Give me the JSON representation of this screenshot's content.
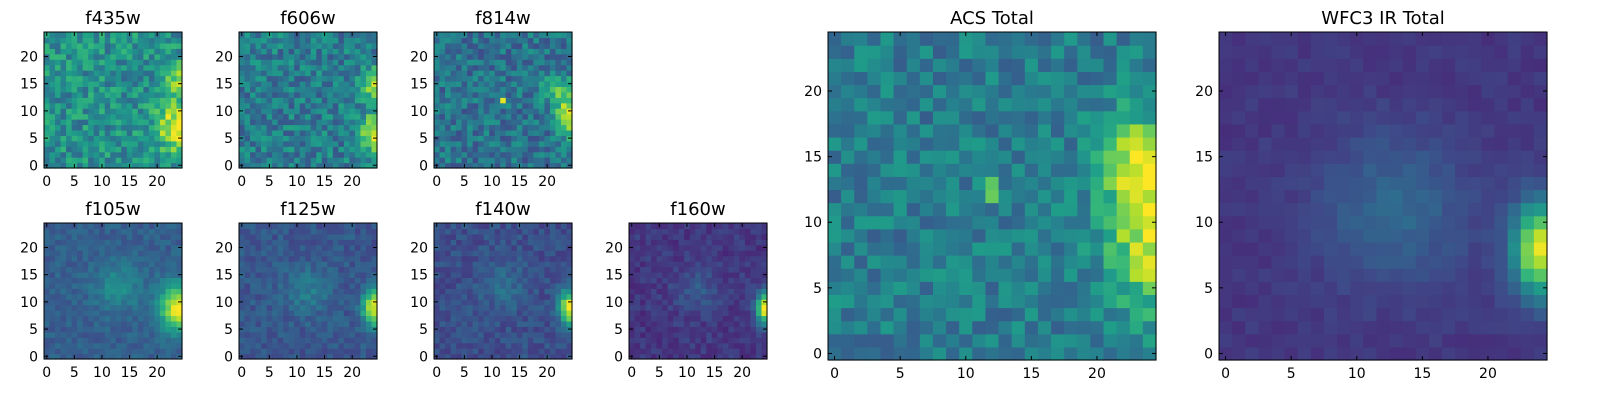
{
  "chart_data": [
    {
      "type": "heatmap",
      "title": "f435w",
      "xlim": [
        0,
        24
      ],
      "ylim": [
        0,
        24
      ],
      "xticks": [
        "0",
        "5",
        "10",
        "15",
        "20"
      ],
      "yticks": [
        "0",
        "5",
        "10",
        "15",
        "20"
      ],
      "colormap": "viridis",
      "field": {
        "base": 0.5,
        "noise": 0.17,
        "blobs": [
          {
            "x": 24,
            "y": 7,
            "sx": 2.5,
            "sy": 3,
            "a": 0.55
          },
          {
            "x": 24,
            "y": 16,
            "sx": 2,
            "sy": 2,
            "a": 0.3
          }
        ],
        "seed": 11
      }
    },
    {
      "type": "heatmap",
      "title": "f606w",
      "xlim": [
        0,
        24
      ],
      "ylim": [
        0,
        24
      ],
      "xticks": [
        "0",
        "5",
        "10",
        "15",
        "20"
      ],
      "yticks": [
        "0",
        "5",
        "10",
        "15",
        "20"
      ],
      "colormap": "viridis",
      "field": {
        "base": 0.42,
        "noise": 0.16,
        "blobs": [
          {
            "x": 24,
            "y": 6,
            "sx": 1.8,
            "sy": 2.5,
            "a": 0.55
          },
          {
            "x": 24,
            "y": 15,
            "sx": 1.8,
            "sy": 1.8,
            "a": 0.5
          }
        ],
        "seed": 23
      }
    },
    {
      "type": "heatmap",
      "title": "f814w",
      "xlim": [
        0,
        24
      ],
      "ylim": [
        0,
        24
      ],
      "xticks": [
        "0",
        "5",
        "10",
        "15",
        "20"
      ],
      "yticks": [
        "0",
        "5",
        "10",
        "15",
        "20"
      ],
      "colormap": "viridis",
      "field": {
        "base": 0.38,
        "noise": 0.15,
        "blobs": [
          {
            "x": 24,
            "y": 9,
            "sx": 1.5,
            "sy": 2.5,
            "a": 0.6
          },
          {
            "x": 22,
            "y": 14,
            "sx": 2,
            "sy": 2,
            "a": 0.3
          },
          {
            "x": 12,
            "y": 12,
            "sx": 0.5,
            "sy": 0.5,
            "a": 0.45
          }
        ],
        "seed": 37
      }
    },
    {
      "type": "heatmap",
      "title": "f105w",
      "xlim": [
        0,
        24
      ],
      "ylim": [
        0,
        24
      ],
      "xticks": [
        "0",
        "5",
        "10",
        "15",
        "20"
      ],
      "yticks": [
        "0",
        "5",
        "10",
        "15",
        "20"
      ],
      "colormap": "viridis",
      "field": {
        "base": 0.3,
        "noise": 0.06,
        "blobs": [
          {
            "x": 24,
            "y": 9,
            "sx": 2.5,
            "sy": 3,
            "a": 0.7
          },
          {
            "x": 13,
            "y": 13,
            "sx": 3,
            "sy": 3,
            "a": 0.2
          }
        ],
        "seed": 41
      }
    },
    {
      "type": "heatmap",
      "title": "f125w",
      "xlim": [
        0,
        24
      ],
      "ylim": [
        0,
        24
      ],
      "xticks": [
        "0",
        "5",
        "10",
        "15",
        "20"
      ],
      "yticks": [
        "0",
        "5",
        "10",
        "15",
        "20"
      ],
      "colormap": "viridis",
      "field": {
        "base": 0.27,
        "noise": 0.07,
        "blobs": [
          {
            "x": 24,
            "y": 9,
            "sx": 1.5,
            "sy": 2.5,
            "a": 0.7
          },
          {
            "x": 12,
            "y": 12,
            "sx": 3,
            "sy": 3,
            "a": 0.15
          }
        ],
        "seed": 53
      }
    },
    {
      "type": "heatmap",
      "title": "f140w",
      "xlim": [
        0,
        24
      ],
      "ylim": [
        0,
        24
      ],
      "xticks": [
        "0",
        "5",
        "10",
        "15",
        "20"
      ],
      "yticks": [
        "0",
        "5",
        "10",
        "15",
        "20"
      ],
      "colormap": "viridis",
      "field": {
        "base": 0.24,
        "noise": 0.07,
        "blobs": [
          {
            "x": 24,
            "y": 9,
            "sx": 1.3,
            "sy": 2.2,
            "a": 0.75
          },
          {
            "x": 12,
            "y": 13,
            "sx": 3,
            "sy": 3,
            "a": 0.12
          }
        ],
        "seed": 67
      }
    },
    {
      "type": "heatmap",
      "title": "f160w",
      "xlim": [
        0,
        24
      ],
      "ylim": [
        0,
        24
      ],
      "xticks": [
        "0",
        "5",
        "10",
        "15",
        "20"
      ],
      "yticks": [
        "0",
        "5",
        "10",
        "15",
        "20"
      ],
      "colormap": "viridis",
      "field": {
        "base": 0.16,
        "noise": 0.06,
        "blobs": [
          {
            "x": 24,
            "y": 9,
            "sx": 1.0,
            "sy": 2.0,
            "a": 0.85
          },
          {
            "x": 12,
            "y": 12,
            "sx": 3,
            "sy": 3,
            "a": 0.12
          }
        ],
        "seed": 79
      }
    },
    {
      "type": "heatmap",
      "title": "ACS Total",
      "xlim": [
        0,
        24
      ],
      "ylim": [
        0,
        24
      ],
      "xticks": [
        "0",
        "5",
        "10",
        "15",
        "20"
      ],
      "yticks": [
        "0",
        "5",
        "10",
        "15",
        "20"
      ],
      "colormap": "viridis",
      "field": {
        "base": 0.42,
        "noise": 0.13,
        "blobs": [
          {
            "x": 24,
            "y": 9,
            "sx": 2.2,
            "sy": 4,
            "a": 0.5
          },
          {
            "x": 23,
            "y": 15,
            "sx": 2,
            "sy": 2.5,
            "a": 0.35
          },
          {
            "x": 12,
            "y": 12.5,
            "sx": 0.5,
            "sy": 0.5,
            "a": 0.4
          }
        ],
        "seed": 97
      }
    },
    {
      "type": "heatmap",
      "title": "WFC3 IR Total",
      "xlim": [
        0,
        24
      ],
      "ylim": [
        0,
        24
      ],
      "xticks": [
        "0",
        "5",
        "10",
        "15",
        "20"
      ],
      "yticks": [
        "0",
        "5",
        "10",
        "15",
        "20"
      ],
      "colormap": "viridis",
      "field": {
        "base": 0.16,
        "noise": 0.03,
        "blobs": [
          {
            "x": 24,
            "y": 8,
            "sx": 1.5,
            "sy": 2.5,
            "a": 0.8
          },
          {
            "x": 13,
            "y": 11,
            "sx": 4,
            "sy": 4,
            "a": 0.18
          }
        ],
        "seed": 101
      }
    }
  ]
}
